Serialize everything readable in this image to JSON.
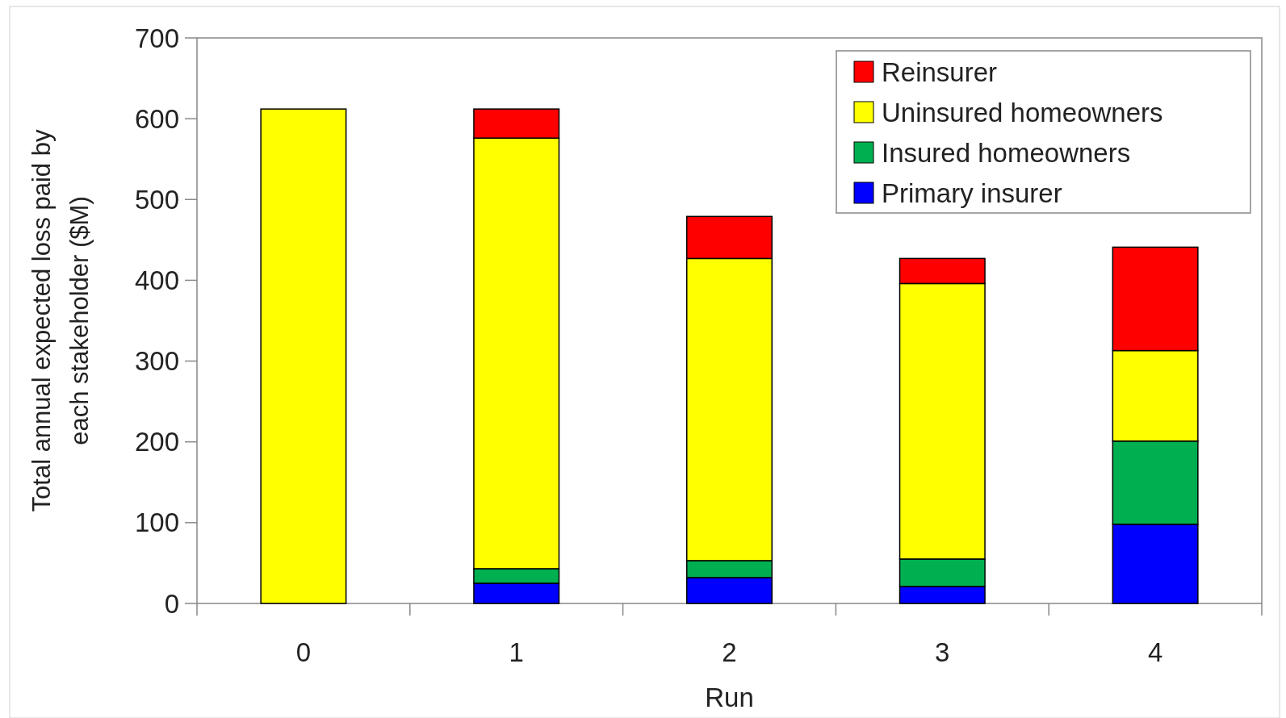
{
  "chart_data": {
    "type": "bar",
    "stacked": true,
    "xlabel": "Run",
    "ylabel": "Total annual expected loss paid by each stakeholder ($M)",
    "categories": [
      "0",
      "1",
      "2",
      "3",
      "4"
    ],
    "series": [
      {
        "name": "Primary insurer",
        "color": "#0000ff",
        "values": [
          0,
          25,
          32,
          21,
          98
        ]
      },
      {
        "name": "Insured homeowners",
        "color": "#00b050",
        "values": [
          0,
          18,
          21,
          34,
          103
        ]
      },
      {
        "name": "Uninsured homeowners",
        "color": "#ffff00",
        "values": [
          612,
          533,
          374,
          341,
          112
        ]
      },
      {
        "name": "Reinsurer",
        "color": "#ff0000",
        "values": [
          0,
          36,
          52,
          31,
          128
        ]
      }
    ],
    "ylim": [
      0,
      700
    ],
    "yticks": [
      0,
      100,
      200,
      300,
      400,
      500,
      600,
      700
    ],
    "grid": false,
    "legend": "top right"
  }
}
